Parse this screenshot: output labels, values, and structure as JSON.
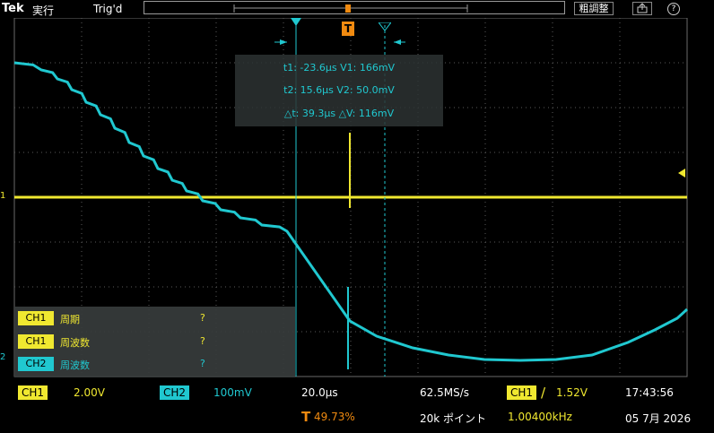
{
  "topbar": {
    "brand": "Tek",
    "run_state": "実行",
    "trigger_state": "Trig'd",
    "coarse_button": "粗調整",
    "export_icon": "export-icon",
    "help_icon": "?"
  },
  "cursor_readout": {
    "line1": "t1: -23.6µs  V1: 166mV",
    "line2": "t2: 15.6µs  V2: 50.0mV",
    "line3": "△t: 39.3µs  △V: 116mV"
  },
  "markers": {
    "cursor1": "1",
    "cursor2": "2",
    "trigger": "T",
    "ch1_ground": "1",
    "ch2_ground": "2"
  },
  "measurements": [
    {
      "channel": "CH1",
      "name": "周期",
      "value": "?",
      "color": "#f0e830"
    },
    {
      "channel": "CH1",
      "name": "周波数",
      "value": "?",
      "color": "#f0e830"
    },
    {
      "channel": "CH2",
      "name": "周波数",
      "value": "?",
      "color": "#20c8d0"
    }
  ],
  "bottom": {
    "ch1_label": "CH1",
    "ch1_scale": "2.00V",
    "ch2_label": "CH2",
    "ch2_scale": "100mV",
    "timebase": "20.0µs",
    "trigger_pos_icon": "T",
    "trigger_pos": "49.73%",
    "sample_rate": "62.5MS/s",
    "record_length": "20k ポイント",
    "trig_source": "CH1",
    "trig_slope": "/",
    "trig_level": "1.52V",
    "trig_freq": "1.00400kHz",
    "time": "17:43:56",
    "date": "05 7月 2026"
  },
  "colors": {
    "ch1": "#f0e830",
    "ch2": "#20c8d0",
    "trigger": "#f08a10",
    "grid": "#5a5a5a"
  }
}
